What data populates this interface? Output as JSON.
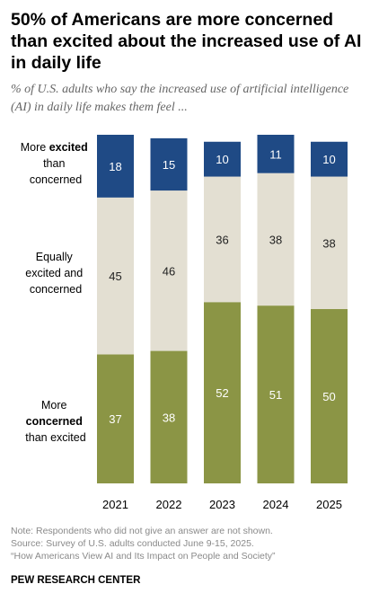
{
  "header": {
    "title": "50% of Americans are more concerned than excited about the increased use of AI in daily life",
    "subtitle": "% of U.S. adults who say the increased use of artificial intelligence (AI) in daily life makes them feel ..."
  },
  "chart_data": {
    "type": "bar",
    "stacked": true,
    "orientation": "vertical",
    "categories": [
      "2021",
      "2022",
      "2023",
      "2024",
      "2025"
    ],
    "series": [
      {
        "name": "More concerned than excited",
        "label_parts": [
          "More",
          "concerned",
          "than excited"
        ],
        "values": [
          37,
          38,
          52,
          51,
          50
        ],
        "color": "#8b9545",
        "text_color": "#ffffff"
      },
      {
        "name": "Equally excited and concerned",
        "label_parts": [
          "Equally",
          "excited and",
          "concerned"
        ],
        "values": [
          45,
          46,
          36,
          38,
          38
        ],
        "color": "#e3dfd2",
        "text_color": "#222222"
      },
      {
        "name": "More excited than concerned",
        "label_parts": [
          "More ",
          "excited",
          "than",
          "concerned"
        ],
        "values": [
          18,
          15,
          10,
          11,
          10
        ],
        "color": "#1f4a85",
        "text_color": "#ffffff"
      }
    ],
    "ylim": [
      0,
      100
    ],
    "grid": false,
    "legend": "left"
  },
  "footer": {
    "note": "Note: Respondents who did not give an answer are not shown.",
    "source": "Source: Survey of U.S. adults conducted June 9-15, 2025.",
    "report": "“How Americans View AI and Its Impact on People and Society”",
    "brand": "PEW RESEARCH CENTER"
  }
}
